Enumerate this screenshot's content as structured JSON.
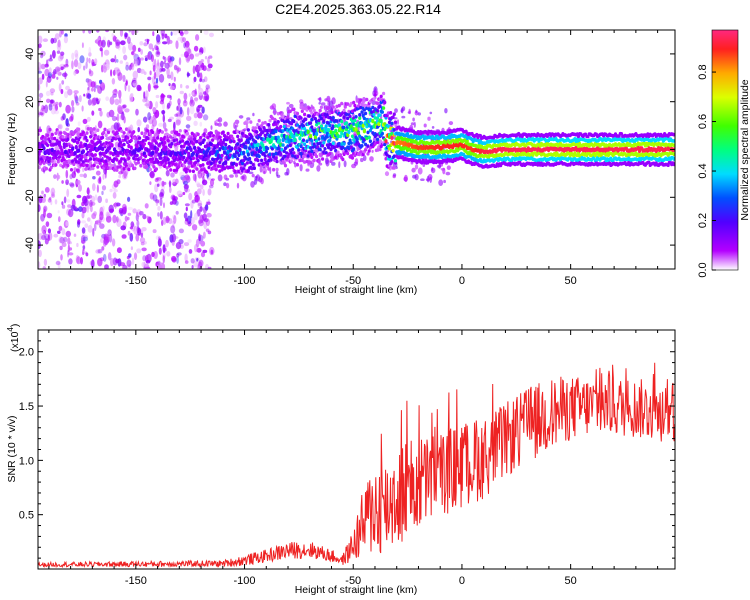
{
  "title": "C2E4.2025.363.05.22.R14",
  "chart_data": [
    {
      "type": "heatmap",
      "name": "spectrogram",
      "xlabel": "Height of straight line (km)",
      "ylabel": "Frequency (Hz)",
      "xlim": [
        -195,
        98
      ],
      "ylim": [
        -50,
        50
      ],
      "x_ticks": [
        -150,
        -100,
        -50,
        0,
        50
      ],
      "x_tick_labels": [
        "-150",
        "-100",
        "-50",
        "0",
        "50"
      ],
      "y_ticks": [
        -40,
        -20,
        0,
        20,
        40
      ],
      "y_tick_labels": [
        "-40",
        "-20",
        "0",
        "20",
        "40"
      ],
      "colorbar": {
        "label": "Normalized spectral amplitude",
        "range": [
          0,
          0.97
        ],
        "ticks": [
          0,
          0.2,
          0.4,
          0.6,
          0.8
        ],
        "tick_labels": [
          "0.0",
          "0.2",
          "0.4",
          "0.6",
          "0.8"
        ]
      },
      "ridge": {
        "x": [
          -195,
          -150,
          -120,
          -100,
          -90,
          -80,
          -70,
          -60,
          -50,
          -40,
          -36,
          -35,
          -30,
          -20,
          -10,
          0,
          5,
          10,
          20,
          50,
          98
        ],
        "y": [
          0,
          0,
          -1,
          -1,
          2,
          5,
          6,
          7,
          8,
          11,
          12,
          5,
          3,
          1,
          1,
          2,
          0,
          -1,
          0,
          0,
          0
        ],
        "amp": [
          0.15,
          0.15,
          0.2,
          0.3,
          0.38,
          0.45,
          0.5,
          0.52,
          0.55,
          0.6,
          0.62,
          0.75,
          0.85,
          0.9,
          0.92,
          0.92,
          0.9,
          0.95,
          0.97,
          0.97,
          0.96
        ]
      },
      "noise_region": {
        "x": [
          -195,
          -115
        ],
        "y": [
          -50,
          50
        ],
        "amp": 0.1
      }
    },
    {
      "type": "line",
      "name": "snr",
      "xlabel": "Height of straight line (km)",
      "ylabel": "SNR (10 * v/v)",
      "y_multiplier_label": "(x10",
      "y_multiplier_exp": "4",
      "y_multiplier_close": ")",
      "xlim": [
        -195,
        98
      ],
      "ylim": [
        0,
        2.2
      ],
      "x_ticks": [
        -150,
        -100,
        -50,
        0,
        50
      ],
      "x_tick_labels": [
        "-150",
        "-100",
        "-50",
        "0",
        "50"
      ],
      "y_ticks": [
        0.5,
        1.0,
        1.5,
        2.0
      ],
      "y_tick_labels": [
        "0.5",
        "1.0",
        "1.5",
        "2.0"
      ],
      "color": "#ee2222",
      "envelope": {
        "x": [
          -195,
          -110,
          -100,
          -90,
          -80,
          -70,
          -60,
          -55,
          -50,
          -45,
          -40,
          -35,
          -30,
          -20,
          -10,
          0,
          10,
          20,
          30,
          40,
          50,
          60,
          70,
          80,
          90,
          98
        ],
        "mean": [
          0.04,
          0.05,
          0.08,
          0.12,
          0.17,
          0.18,
          0.12,
          0.08,
          0.22,
          0.42,
          0.58,
          0.58,
          0.68,
          0.78,
          0.88,
          0.95,
          1.02,
          1.18,
          1.32,
          1.42,
          1.48,
          1.5,
          1.5,
          1.48,
          1.45,
          1.45
        ],
        "spread": [
          0.02,
          0.03,
          0.05,
          0.06,
          0.08,
          0.08,
          0.06,
          0.05,
          0.15,
          0.35,
          0.45,
          0.45,
          0.5,
          0.45,
          0.4,
          0.4,
          0.38,
          0.35,
          0.35,
          0.35,
          0.3,
          0.28,
          0.28,
          0.28,
          0.28,
          0.28
        ]
      }
    }
  ]
}
